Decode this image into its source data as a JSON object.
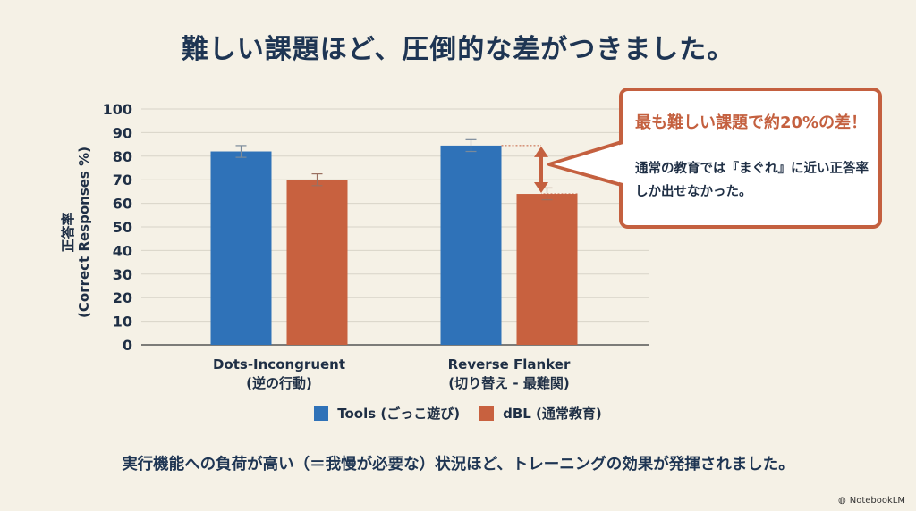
{
  "title": "難しい課題ほど、圧倒的な差がつきました。",
  "callout": {
    "headline": "最も難しい課題で約20%の差！",
    "body": "通常の教育では『まぐれ』に近い正答率しか出せなかった。"
  },
  "footer": "実行機能への負荷が高い（＝我慢が必要な）状況ほど、トレーニングの効果が発揮されました。",
  "brand": "NotebookLM",
  "colors": {
    "tools": "#2f72b8",
    "dbl": "#c8613f",
    "accent": "#c4603f"
  },
  "chart_data": {
    "type": "bar",
    "ylabel_line1": "正答率",
    "ylabel_line2": "(Correct Responses %)",
    "ylim": [
      0,
      100
    ],
    "yticks": [
      "0",
      "10",
      "20",
      "30",
      "40",
      "50",
      "60",
      "70",
      "80",
      "90",
      "100"
    ],
    "grid": true,
    "categories": [
      {
        "name": "Dots-Incongruent",
        "sub": "(逆の行動)"
      },
      {
        "name": "Reverse Flanker",
        "sub": "(切り替え - 最難関)"
      }
    ],
    "series": [
      {
        "name": "Tools (ごっこ遊び)",
        "values": [
          82,
          84.5
        ],
        "errors": [
          2.5,
          2.5
        ]
      },
      {
        "name": "dBL (通常教育)",
        "values": [
          70,
          64
        ],
        "errors": [
          2.5,
          2.5
        ]
      }
    ],
    "legend": "bottom-center"
  }
}
